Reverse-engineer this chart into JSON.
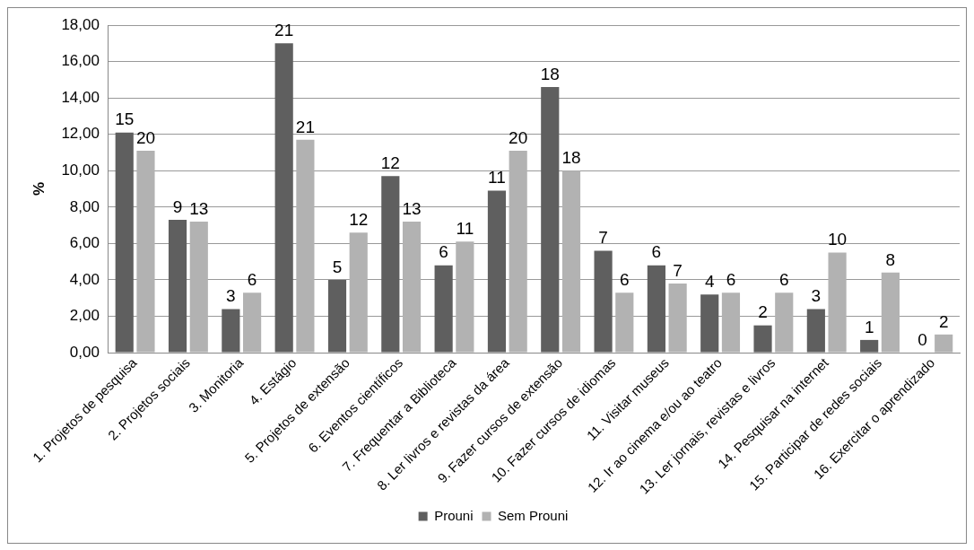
{
  "chart_data": {
    "type": "bar",
    "ylabel": "%",
    "categories": [
      "1. Projetos de pesquisa",
      "2. Projetos sociais",
      "3. Monitoria",
      "4. Estágio",
      "5. Projetos de extensão",
      "6. Eventos científicos",
      "7. Frequentar a Biblioteca",
      "8. Ler livros e revistas da área",
      "9. Fazer cursos de extensão",
      "10. Fazer cursos de idiomas",
      "11. Visitar museus",
      "12. Ir ao cinema e/ou ao teatro",
      "13. Ler jornais, revistas e livros",
      "14. Pesquisar na internet",
      "15. Participar de redes sociais",
      "16. Exercitar o aprendizado"
    ],
    "series": [
      {
        "name": "Prouni",
        "color": "#5f5f5f",
        "values": [
          12.1,
          7.3,
          2.4,
          17.0,
          4.0,
          9.7,
          4.8,
          8.9,
          14.6,
          5.6,
          4.8,
          3.2,
          1.5,
          2.4,
          0.7,
          0
        ]
      },
      {
        "name": "Sem Prouni",
        "color": "#b2b2b2",
        "values": [
          11.1,
          7.2,
          3.3,
          11.7,
          6.6,
          7.2,
          6.1,
          11.1,
          10.0,
          3.3,
          3.8,
          3.3,
          3.3,
          5.5,
          4.4,
          1.0
        ]
      }
    ],
    "annotations": [
      {
        "text": "15",
        "x": "1. Projetos de pesquisa",
        "y": 12.1
      },
      {
        "text": "20",
        "x": "1. Projetos de pesquisa",
        "y": 11.1
      },
      {
        "text": "9",
        "x": "2. Projetos sociais",
        "y": 7.3
      },
      {
        "text": "13",
        "x": "2. Projetos sociais",
        "y": 7.2
      },
      {
        "text": "3",
        "x": "3. Monitoria",
        "y": 2.4
      },
      {
        "text": "6",
        "x": "3. Monitoria",
        "y": 3.3
      },
      {
        "text": "21",
        "x": "4. Estágio",
        "y": 17.0
      },
      {
        "text": "21",
        "x": "4. Estágio",
        "y": 11.7
      },
      {
        "text": "5",
        "x": "5. Projetos de extensão",
        "y": 4.0
      },
      {
        "text": "12",
        "x": "5. Projetos de extensão",
        "y": 6.6
      },
      {
        "text": "12",
        "x": "6. Eventos científicos",
        "y": 9.7
      },
      {
        "text": "13",
        "x": "6. Eventos científicos",
        "y": 7.2
      },
      {
        "text": "6",
        "x": "7. Frequentar a Biblioteca",
        "y": 4.8
      },
      {
        "text": "11",
        "x": "7. Frequentar a Biblioteca",
        "y": 6.1
      },
      {
        "text": "11",
        "x": "8. Ler livros e revistas da área",
        "y": 8.9
      },
      {
        "text": "20",
        "x": "8. Ler livros e revistas da área",
        "y": 11.1
      },
      {
        "text": "18",
        "x": "9. Fazer cursos de extensão",
        "y": 14.6
      },
      {
        "text": "18",
        "x": "9. Fazer cursos de extensão",
        "y": 10.0
      },
      {
        "text": "7",
        "x": "10. Fazer cursos de idiomas",
        "y": 5.6
      },
      {
        "text": "6",
        "x": "10. Fazer cursos de idiomas",
        "y": 3.3
      },
      {
        "text": "6",
        "x": "11. Visitar museus",
        "y": 4.8
      },
      {
        "text": "7",
        "x": "11. Visitar museus",
        "y": 3.8
      },
      {
        "text": "4",
        "x": "12. Ir ao cinema e/ou ao teatro",
        "y": 3.2
      },
      {
        "text": "6",
        "x": "12. Ir ao cinema e/ou ao teatro",
        "y": 3.3
      },
      {
        "text": "2",
        "x": "13. Ler jornais, revistas e livros",
        "y": 1.5
      },
      {
        "text": "6",
        "x": "13. Ler jornais, revistas e livros",
        "y": 3.3
      },
      {
        "text": "3",
        "x": "14. Pesquisar na internet",
        "y": 2.4
      },
      {
        "text": "10",
        "x": "14. Pesquisar na internet",
        "y": 5.5
      },
      {
        "text": "1",
        "x": "15. Participar de redes sociais",
        "y": 0.7
      },
      {
        "text": "8",
        "x": "15. Participar de redes sociais",
        "y": 4.4
      },
      {
        "text": "0",
        "x": "16. Exercitar o aprendizado",
        "y": 0
      },
      {
        "text": "2",
        "x": "16. Exercitar o aprendizado",
        "y": 1.0
      }
    ],
    "ylim": [
      0,
      18
    ],
    "yticks": [
      {
        "value": 0,
        "label": "0,00"
      },
      {
        "value": 2,
        "label": "2,00"
      },
      {
        "value": 4,
        "label": "4,00"
      },
      {
        "value": 6,
        "label": "6,00"
      },
      {
        "value": 8,
        "label": "8,00"
      },
      {
        "value": 10,
        "label": "10,00"
      },
      {
        "value": 12,
        "label": "12,00"
      },
      {
        "value": 14,
        "label": "14,00"
      },
      {
        "value": 16,
        "label": "16,00"
      },
      {
        "value": 18,
        "label": "18,00"
      }
    ],
    "grid": "y",
    "legend": "bottom"
  }
}
